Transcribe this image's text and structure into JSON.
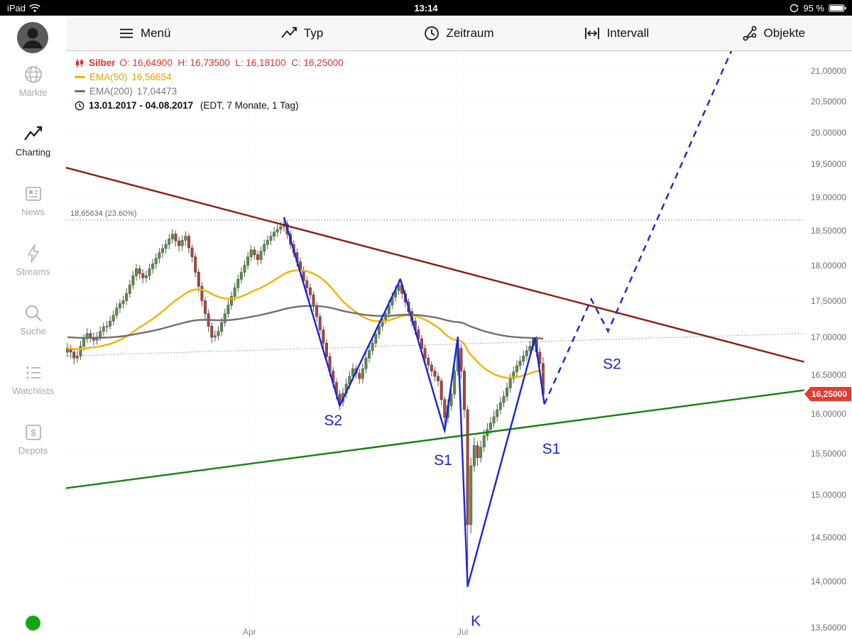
{
  "status_bar": {
    "device": "iPad",
    "time": "13:14",
    "battery": "95 %"
  },
  "toolbar": {
    "items": [
      {
        "label": "Menü",
        "icon": "hamburger-icon"
      },
      {
        "label": "Typ",
        "icon": "chart-type-icon"
      },
      {
        "label": "Zeitraum",
        "icon": "clock-icon"
      },
      {
        "label": "Intervall",
        "icon": "interval-icon"
      },
      {
        "label": "Objekte",
        "icon": "objects-branch-icon"
      }
    ]
  },
  "sidebar": {
    "items": [
      {
        "label": "Märkte",
        "icon": "globe-icon",
        "active": false
      },
      {
        "label": "Charting",
        "icon": "chart-line-icon",
        "active": true
      },
      {
        "label": "News",
        "icon": "newspaper-icon",
        "active": false
      },
      {
        "label": "Streams",
        "icon": "lightning-icon",
        "active": false
      },
      {
        "label": "Suche",
        "icon": "magnifier-icon",
        "active": false
      },
      {
        "label": "Watchlists",
        "icon": "list-icon",
        "active": false
      },
      {
        "label": "Depots",
        "icon": "dollar-icon",
        "active": false
      }
    ],
    "status_dot_color": "#12a712"
  },
  "legend": {
    "instrument": "Silber",
    "ohlc": "O: 16,64900  H: 16,73500  L: 16,18100  C: 16,25000",
    "ema50_label": "EMA(50)",
    "ema50_value": "16,56654",
    "ema200_label": "EMA(200)",
    "ema200_value": "17,04473",
    "range": "13.01.2017 - 04.08.2017",
    "range_info": " (EDT, 7 Monate, 1 Tag)"
  },
  "chart_data": {
    "type": "candlestick",
    "instrument": "Silber",
    "date_range": "13.01.2017 - 04.08.2017",
    "range_note": "EDT, 7 Monate, 1 Tag",
    "y_axis": {
      "scale": "log",
      "min": 13.5,
      "max": 21.0,
      "step": 0.5,
      "ticks": [
        {
          "v": 21.0,
          "t": "21,00000"
        },
        {
          "v": 20.5,
          "t": "20,50000"
        },
        {
          "v": 20.0,
          "t": "20,00000"
        },
        {
          "v": 19.5,
          "t": "19,50000"
        },
        {
          "v": 19.0,
          "t": "19,00000"
        },
        {
          "v": 18.5,
          "t": "18,50000"
        },
        {
          "v": 18.0,
          "t": "18,00000"
        },
        {
          "v": 17.5,
          "t": "17,50000"
        },
        {
          "v": 17.0,
          "t": "17,00000"
        },
        {
          "v": 16.5,
          "t": "16,50000"
        },
        {
          "v": 16.0,
          "t": "16,00000"
        },
        {
          "v": 15.5,
          "t": "15,50000"
        },
        {
          "v": 15.0,
          "t": "15,00000"
        },
        {
          "v": 14.5,
          "t": "14,50000"
        },
        {
          "v": 14.0,
          "t": "14,00000"
        },
        {
          "v": 13.5,
          "t": "13,50000"
        }
      ]
    },
    "x_axis": {
      "labels": [
        {
          "t": "Apr",
          "i": 55.5
        },
        {
          "t": "Jul",
          "i": 120.5
        }
      ]
    },
    "colors": {
      "up": "#5f8a4e",
      "up_stroke": "#44673a",
      "down": "#a04a42",
      "down_stroke": "#7c372f",
      "wick": "#555555",
      "grid": "#e7e7e7",
      "wave_blue": "#1b24d8",
      "badge_red": "#e23b32"
    },
    "candles": [
      [
        16.8,
        16.92,
        16.73,
        16.85
      ],
      [
        16.85,
        16.9,
        16.72,
        16.8
      ],
      [
        16.8,
        16.85,
        16.64,
        16.72
      ],
      [
        16.72,
        16.82,
        16.66,
        16.75
      ],
      [
        16.75,
        16.95,
        16.7,
        16.88
      ],
      [
        16.88,
        17.04,
        16.82,
        16.98
      ],
      [
        16.98,
        17.12,
        16.92,
        17.05
      ],
      [
        17.05,
        17.1,
        16.93,
        17.0
      ],
      [
        17.0,
        17.06,
        16.89,
        16.96
      ],
      [
        16.96,
        17.07,
        16.9,
        17.0
      ],
      [
        17.0,
        17.15,
        16.95,
        17.08
      ],
      [
        17.08,
        17.2,
        17.02,
        17.14
      ],
      [
        17.14,
        17.22,
        17.06,
        17.15
      ],
      [
        17.15,
        17.29,
        17.1,
        17.22
      ],
      [
        17.22,
        17.37,
        17.16,
        17.3
      ],
      [
        17.3,
        17.47,
        17.25,
        17.4
      ],
      [
        17.4,
        17.52,
        17.33,
        17.46
      ],
      [
        17.46,
        17.57,
        17.39,
        17.5
      ],
      [
        17.5,
        17.67,
        17.44,
        17.6
      ],
      [
        17.6,
        17.79,
        17.54,
        17.72
      ],
      [
        17.72,
        17.92,
        17.66,
        17.85
      ],
      [
        17.85,
        18.02,
        17.78,
        17.95
      ],
      [
        17.95,
        18.0,
        17.8,
        17.88
      ],
      [
        17.88,
        17.94,
        17.74,
        17.82
      ],
      [
        17.82,
        17.92,
        17.75,
        17.85
      ],
      [
        17.85,
        18.02,
        17.79,
        17.95
      ],
      [
        17.95,
        18.09,
        17.88,
        18.02
      ],
      [
        18.02,
        18.17,
        17.95,
        18.1
      ],
      [
        18.1,
        18.25,
        18.03,
        18.18
      ],
      [
        18.18,
        18.31,
        18.11,
        18.24
      ],
      [
        18.24,
        18.37,
        18.17,
        18.3
      ],
      [
        18.3,
        18.45,
        18.23,
        18.38
      ],
      [
        18.38,
        18.52,
        18.31,
        18.45
      ],
      [
        18.45,
        18.5,
        18.27,
        18.35
      ],
      [
        18.35,
        18.41,
        18.2,
        18.28
      ],
      [
        18.28,
        18.43,
        18.21,
        18.36
      ],
      [
        18.36,
        18.49,
        18.28,
        18.42
      ],
      [
        18.42,
        18.46,
        18.17,
        18.25
      ],
      [
        18.25,
        18.3,
        18.04,
        18.12
      ],
      [
        18.12,
        18.17,
        17.83,
        17.9
      ],
      [
        17.9,
        17.95,
        17.62,
        17.7
      ],
      [
        17.7,
        17.76,
        17.42,
        17.5
      ],
      [
        17.5,
        17.55,
        17.24,
        17.32
      ],
      [
        17.32,
        17.38,
        17.07,
        17.15
      ],
      [
        17.15,
        17.2,
        16.92,
        17.0
      ],
      [
        17.0,
        17.09,
        16.94,
        17.02
      ],
      [
        17.02,
        17.15,
        16.96,
        17.08
      ],
      [
        17.08,
        17.27,
        17.02,
        17.2
      ],
      [
        17.2,
        17.39,
        17.14,
        17.32
      ],
      [
        17.32,
        17.51,
        17.26,
        17.44
      ],
      [
        17.44,
        17.63,
        17.38,
        17.56
      ],
      [
        17.56,
        17.75,
        17.5,
        17.68
      ],
      [
        17.68,
        17.87,
        17.62,
        17.8
      ],
      [
        17.8,
        17.97,
        17.74,
        17.9
      ],
      [
        17.9,
        18.07,
        17.84,
        18.0
      ],
      [
        18.0,
        18.19,
        17.94,
        18.12
      ],
      [
        18.12,
        18.29,
        18.06,
        18.22
      ],
      [
        18.22,
        18.27,
        18.08,
        18.15
      ],
      [
        18.15,
        18.21,
        18.0,
        18.08
      ],
      [
        18.08,
        18.27,
        18.02,
        18.2
      ],
      [
        18.2,
        18.37,
        18.14,
        18.3
      ],
      [
        18.3,
        18.43,
        18.23,
        18.36
      ],
      [
        18.36,
        18.49,
        18.29,
        18.42
      ],
      [
        18.42,
        18.55,
        18.35,
        18.48
      ],
      [
        18.48,
        18.59,
        18.41,
        18.52
      ],
      [
        18.52,
        18.63,
        18.45,
        18.56
      ],
      [
        18.56,
        18.66,
        18.49,
        18.6
      ],
      [
        18.6,
        18.64,
        18.38,
        18.45
      ],
      [
        18.45,
        18.5,
        18.23,
        18.3
      ],
      [
        18.3,
        18.36,
        18.11,
        18.18
      ],
      [
        18.18,
        18.24,
        17.98,
        18.05
      ],
      [
        18.05,
        18.11,
        17.85,
        17.92
      ],
      [
        17.92,
        17.98,
        17.71,
        17.78
      ],
      [
        17.78,
        17.84,
        17.61,
        17.68
      ],
      [
        17.68,
        17.74,
        17.51,
        17.58
      ],
      [
        17.58,
        17.63,
        17.35,
        17.42
      ],
      [
        17.42,
        17.48,
        17.21,
        17.28
      ],
      [
        17.28,
        17.33,
        17.03,
        17.1
      ],
      [
        17.1,
        17.15,
        16.85,
        16.92
      ],
      [
        16.92,
        16.97,
        16.67,
        16.74
      ],
      [
        16.74,
        16.79,
        16.48,
        16.55
      ],
      [
        16.55,
        16.6,
        16.33,
        16.4
      ],
      [
        16.4,
        16.45,
        16.18,
        16.25
      ],
      [
        16.25,
        16.3,
        16.05,
        16.15
      ],
      [
        16.15,
        16.33,
        16.09,
        16.26
      ],
      [
        16.26,
        16.45,
        16.2,
        16.38
      ],
      [
        16.38,
        16.55,
        16.32,
        16.48
      ],
      [
        16.48,
        16.65,
        16.42,
        16.58
      ],
      [
        16.58,
        16.63,
        16.45,
        16.52
      ],
      [
        16.52,
        16.58,
        16.38,
        16.45
      ],
      [
        16.45,
        16.65,
        16.39,
        16.58
      ],
      [
        16.58,
        16.79,
        16.52,
        16.72
      ],
      [
        16.72,
        16.89,
        16.66,
        16.82
      ],
      [
        16.82,
        16.99,
        16.76,
        16.92
      ],
      [
        16.92,
        17.11,
        16.86,
        17.04
      ],
      [
        17.04,
        17.22,
        16.98,
        17.15
      ],
      [
        17.15,
        17.31,
        17.09,
        17.24
      ],
      [
        17.24,
        17.39,
        17.18,
        17.32
      ],
      [
        17.32,
        17.51,
        17.26,
        17.44
      ],
      [
        17.44,
        17.62,
        17.38,
        17.55
      ],
      [
        17.55,
        17.71,
        17.49,
        17.64
      ],
      [
        17.64,
        17.8,
        17.58,
        17.72
      ],
      [
        17.72,
        17.76,
        17.53,
        17.6
      ],
      [
        17.6,
        17.65,
        17.41,
        17.48
      ],
      [
        17.48,
        17.53,
        17.28,
        17.35
      ],
      [
        17.35,
        17.4,
        17.15,
        17.22
      ],
      [
        17.22,
        17.27,
        17.03,
        17.1
      ],
      [
        17.1,
        17.15,
        16.91,
        16.98
      ],
      [
        16.98,
        17.03,
        16.78,
        16.85
      ],
      [
        16.85,
        16.9,
        16.65,
        16.72
      ],
      [
        16.72,
        16.77,
        16.56,
        16.63
      ],
      [
        16.63,
        16.68,
        16.48,
        16.55
      ],
      [
        16.55,
        16.6,
        16.41,
        16.48
      ],
      [
        16.48,
        16.53,
        16.35,
        16.42
      ],
      [
        16.42,
        16.46,
        16.1,
        16.18
      ],
      [
        16.18,
        16.22,
        15.75,
        15.95
      ],
      [
        15.95,
        16.18,
        15.88,
        16.1
      ],
      [
        16.1,
        16.33,
        16.04,
        16.25
      ],
      [
        16.25,
        16.62,
        16.19,
        16.55
      ],
      [
        16.55,
        17.0,
        16.49,
        16.85
      ],
      [
        16.85,
        16.9,
        16.45,
        16.55
      ],
      [
        16.55,
        16.6,
        15.95,
        16.05
      ],
      [
        16.05,
        16.1,
        13.95,
        14.65
      ],
      [
        14.65,
        15.45,
        14.55,
        15.35
      ],
      [
        15.35,
        15.7,
        15.28,
        15.6
      ],
      [
        15.6,
        15.65,
        15.35,
        15.45
      ],
      [
        15.45,
        15.66,
        15.39,
        15.58
      ],
      [
        15.58,
        15.8,
        15.52,
        15.72
      ],
      [
        15.72,
        15.88,
        15.66,
        15.8
      ],
      [
        15.8,
        15.96,
        15.74,
        15.88
      ],
      [
        15.88,
        16.04,
        15.82,
        15.96
      ],
      [
        15.96,
        16.12,
        15.9,
        16.05
      ],
      [
        16.05,
        16.21,
        15.99,
        16.14
      ],
      [
        16.14,
        16.29,
        16.08,
        16.22
      ],
      [
        16.22,
        16.4,
        16.16,
        16.33
      ],
      [
        16.33,
        16.52,
        16.27,
        16.45
      ],
      [
        16.45,
        16.61,
        16.39,
        16.54
      ],
      [
        16.54,
        16.69,
        16.48,
        16.62
      ],
      [
        16.62,
        16.75,
        16.56,
        16.68
      ],
      [
        16.68,
        16.82,
        16.62,
        16.75
      ],
      [
        16.75,
        16.89,
        16.69,
        16.82
      ],
      [
        16.82,
        16.95,
        16.76,
        16.88
      ],
      [
        16.88,
        17.0,
        16.82,
        16.98
      ],
      [
        16.98,
        17.02,
        16.74,
        16.8
      ],
      [
        16.8,
        16.86,
        16.6,
        16.65
      ],
      [
        16.649,
        16.735,
        16.181,
        16.25
      ]
    ],
    "overlays": [
      {
        "name": "EMA(50)",
        "period": 50,
        "color": "#f0b400",
        "last_value": 16.56654
      },
      {
        "name": "EMA(200)",
        "period": 200,
        "seed": 17.0,
        "color": "#6f6f6f",
        "last_value": 17.04473
      }
    ],
    "trendlines": [
      {
        "name": "falling-resistance",
        "color": "#8e1a10",
        "width": 2.4,
        "i1": -0.5,
        "p1": 19.45,
        "i2": 224.6,
        "p2": 16.67
      },
      {
        "name": "rising-support",
        "color": "#12820f",
        "width": 2.4,
        "i1": -0.5,
        "p1": 15.08,
        "i2": 224.6,
        "p2": 16.3
      },
      {
        "name": "minor-dotted",
        "color": "#555555",
        "width": 1,
        "dash": "1,3",
        "i1": -0.5,
        "p1": 16.75,
        "i2": 224.6,
        "p2": 17.05
      }
    ],
    "fib_level": {
      "price": 18.65634,
      "label": "18,65634 (23.60%)"
    },
    "waves": {
      "color": "#1b24d8",
      "solid": [
        [
          66,
          18.7
        ],
        [
          83,
          16.1
        ],
        [
          101.5,
          17.8
        ],
        [
          115,
          15.78
        ],
        [
          119,
          17.0
        ],
        [
          122,
          13.95
        ],
        [
          142.5,
          16.99
        ],
        [
          145.4,
          16.12
        ]
      ],
      "dashed": [
        [
          145.4,
          16.12
        ],
        [
          159.7,
          17.52
        ],
        [
          164.8,
          17.08
        ],
        [
          206,
          21.8
        ]
      ],
      "labels": [
        {
          "t": "S2",
          "i": 81,
          "p": 15.85
        },
        {
          "t": "S1",
          "i": 114.5,
          "p": 15.36
        },
        {
          "t": "K",
          "i": 124.5,
          "p": 13.52
        },
        {
          "t": "S1",
          "i": 147.5,
          "p": 15.5
        },
        {
          "t": "S2",
          "i": 166,
          "p": 16.58
        }
      ]
    },
    "price_marker": {
      "text": "16,25000",
      "value": 16.25,
      "color": "#e23b32"
    }
  }
}
